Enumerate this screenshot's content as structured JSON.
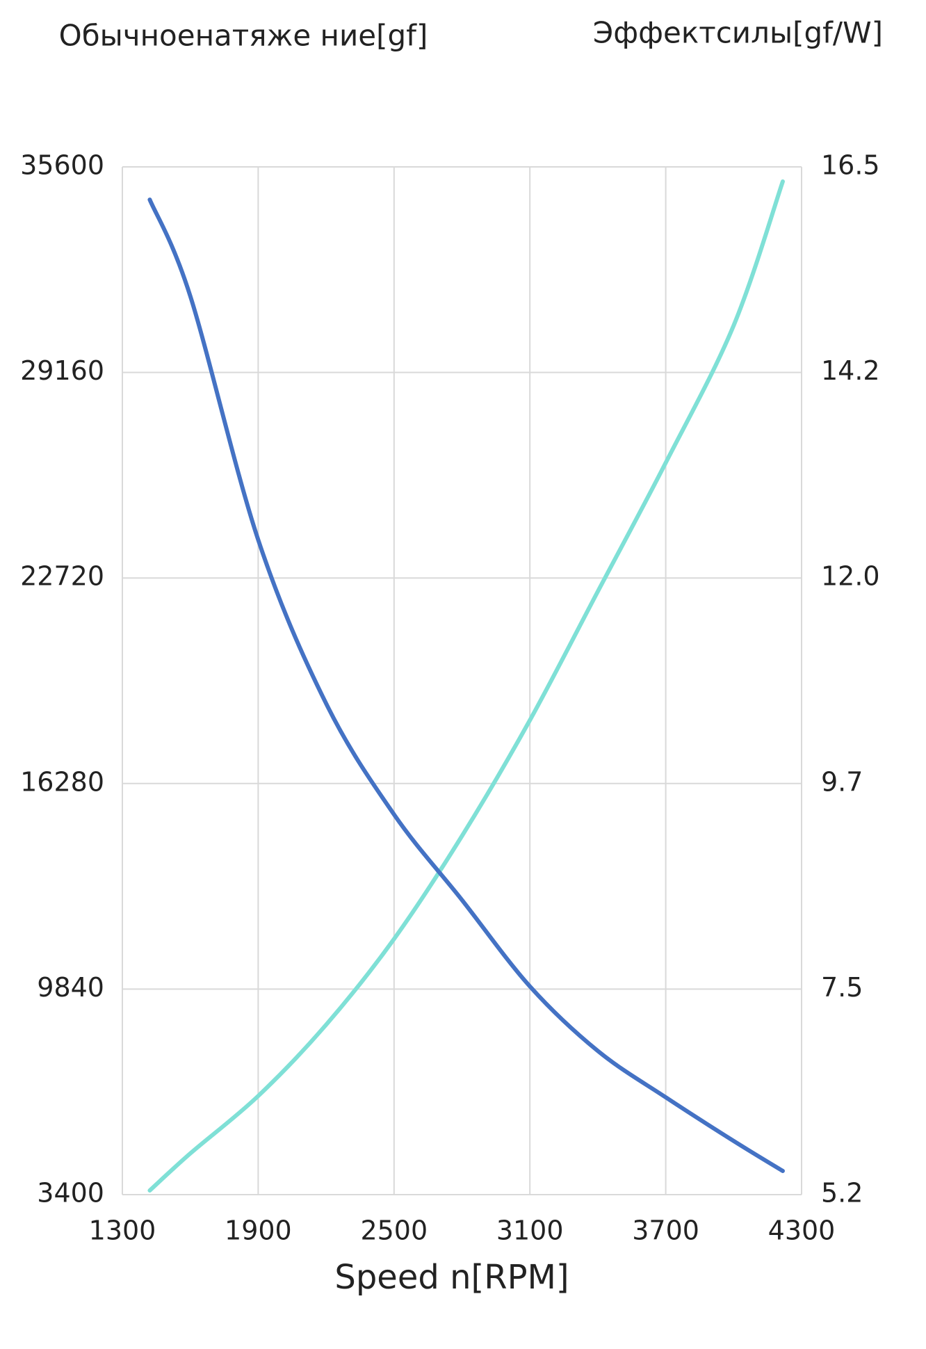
{
  "chart_data": {
    "type": "line",
    "x_label": "Speed n[RPM]",
    "x": [
      1421,
      1600,
      1900,
      2200,
      2500,
      2800,
      3100,
      3400,
      3700,
      4000,
      4217
    ],
    "series": [
      {
        "name": "Обычноенатяже ние[gf]",
        "color": "#7fe0d6",
        "axis": "y",
        "values": [
          3530,
          4690,
          6491,
          8722,
          11410,
          14636,
          18264,
          22297,
          26329,
          30629,
          35143
        ]
      },
      {
        "name": "Эффектсилы[gf/W]",
        "color": "#4472c4",
        "axis": "y2",
        "values": [
          16.14,
          15.08,
          12.4,
          10.6,
          9.38,
          8.44,
          7.49,
          6.78,
          6.27,
          5.79,
          5.46
        ]
      }
    ],
    "xlim": [
      1300,
      4300
    ],
    "xticks": [
      1300,
      1900,
      2500,
      3100,
      3700,
      4300
    ],
    "ylim": [
      3400,
      35600
    ],
    "yticks": [
      3400,
      9840,
      16280,
      22720,
      29160,
      35600
    ],
    "y2lim": [
      5.2,
      16.5
    ],
    "y2ticks": [
      5.2,
      {
        "value": 7.46,
        "label": "7.5"
      },
      {
        "value": 9.72,
        "label": "9.7"
      },
      {
        "value": 11.98,
        "label": "12.0"
      },
      {
        "value": 14.24,
        "label": "14.2"
      },
      16.5
    ],
    "grid": true
  }
}
